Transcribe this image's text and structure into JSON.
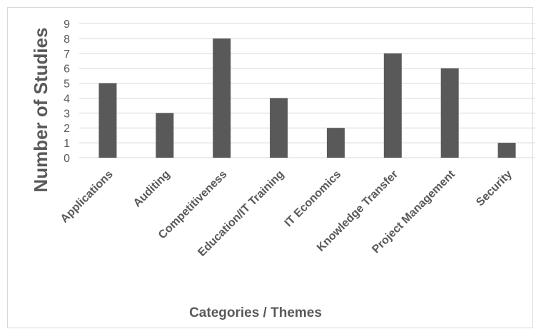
{
  "chart_data": {
    "type": "bar",
    "categories": [
      "Applications",
      "Auditing",
      "Competitiveness",
      "Education/IT Training",
      "IT Economics",
      "Knowledge Transfer",
      "Project Management",
      "Security"
    ],
    "values": [
      5,
      3,
      8,
      4,
      2,
      7,
      6,
      1
    ],
    "title": "",
    "xlabel": "Categories / Themes",
    "ylabel": "Number of Studies",
    "ylim": [
      0,
      9
    ],
    "yticks": [
      0,
      1,
      2,
      3,
      4,
      5,
      6,
      7,
      8,
      9
    ],
    "grid": true,
    "legend": "none",
    "bar_color": "#595959",
    "grid_color": "#d9d9d9"
  }
}
